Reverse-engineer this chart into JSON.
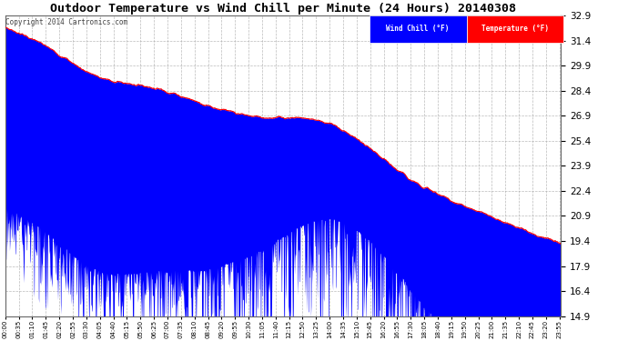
{
  "title": "Outdoor Temperature vs Wind Chill per Minute (24 Hours) 20140308",
  "copyright": "Copyright 2014 Cartronics.com",
  "legend_wind_chill": "Wind Chill (°F)",
  "legend_temperature": "Temperature (°F)",
  "background_color": "#ffffff",
  "plot_bg_color": "#ffffff",
  "grid_color": "#aaaaaa",
  "temp_color": "#ff0000",
  "wind_chill_color": "#0000ff",
  "ylim_min": 14.9,
  "ylim_max": 32.9,
  "yticks": [
    14.9,
    16.4,
    17.9,
    19.4,
    20.9,
    22.4,
    23.9,
    25.4,
    26.9,
    28.4,
    29.9,
    31.4,
    32.9
  ],
  "xtick_interval": 35,
  "num_minutes": 1440,
  "temp_seed": 7,
  "wind_seed": 13
}
